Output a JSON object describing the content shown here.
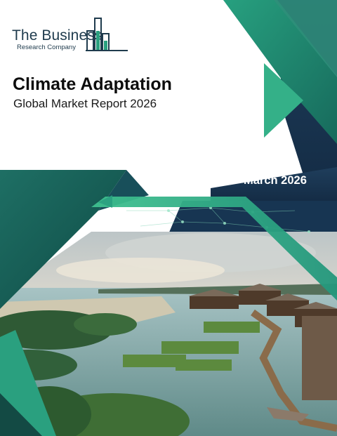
{
  "logo": {
    "name": "The Business",
    "subtitle": "Research Company"
  },
  "report": {
    "title": "Climate Adaptation",
    "subtitle": "Global Market Report 2026",
    "date": "March 2026"
  },
  "colors": {
    "navy": "#1d3a55",
    "teal_dark": "#1e7466",
    "teal": "#2a9b80",
    "green": "#3db889",
    "logo": "#1f3b4d"
  },
  "cover_photo": {
    "subject": "coastal mangroves, floating garden beds and stilt houses connected by wooden boardwalks"
  }
}
